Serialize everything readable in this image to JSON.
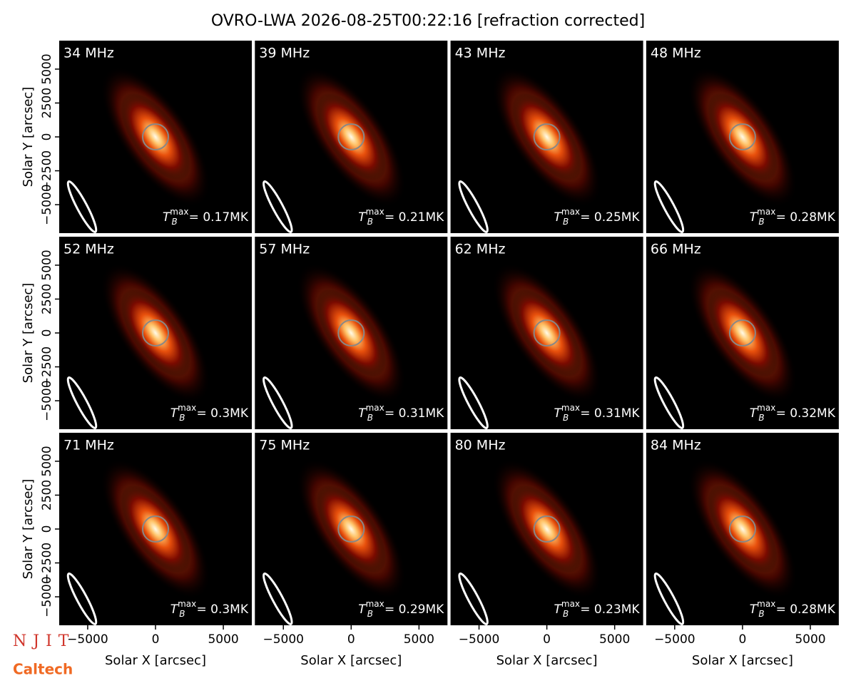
{
  "chart_data": {
    "type": "image-grid",
    "title": "OVRO-LWA 2026-08-25T00:22:16 [refraction corrected]",
    "x_label": "Solar X [arcsec]",
    "y_label": "Solar Y [arcsec]",
    "xlim": [
      -7100,
      7100
    ],
    "ylim": [
      -7100,
      7100
    ],
    "xticks": [
      {
        "value": -5000,
        "label": "−5000"
      },
      0,
      5000
    ],
    "yticks": [
      {
        "value": -5000,
        "label": "−5000"
      },
      {
        "value": -2500,
        "label": "−2500"
      },
      0,
      2500,
      5000
    ],
    "tb_symbol": {
      "base": "T",
      "sub": "B",
      "sup": "max"
    },
    "panels": [
      {
        "title": "34 MHz",
        "tmax": "= 0.17MK"
      },
      {
        "title": "39 MHz",
        "tmax": "= 0.21MK"
      },
      {
        "title": "43 MHz",
        "tmax": "= 0.25MK"
      },
      {
        "title": "48 MHz",
        "tmax": "= 0.28MK"
      },
      {
        "title": "52 MHz",
        "tmax": "= 0.3MK"
      },
      {
        "title": "57 MHz",
        "tmax": "= 0.31MK"
      },
      {
        "title": "62 MHz",
        "tmax": "= 0.31MK"
      },
      {
        "title": "66 MHz",
        "tmax": "= 0.32MK"
      },
      {
        "title": "71 MHz",
        "tmax": "= 0.3MK"
      },
      {
        "title": "75 MHz",
        "tmax": "= 0.29MK"
      },
      {
        "title": "80 MHz",
        "tmax": "= 0.23MK"
      },
      {
        "title": "84 MHz",
        "tmax": "= 0.28MK"
      }
    ],
    "logos": [
      "NJIT",
      "Caltech"
    ]
  }
}
